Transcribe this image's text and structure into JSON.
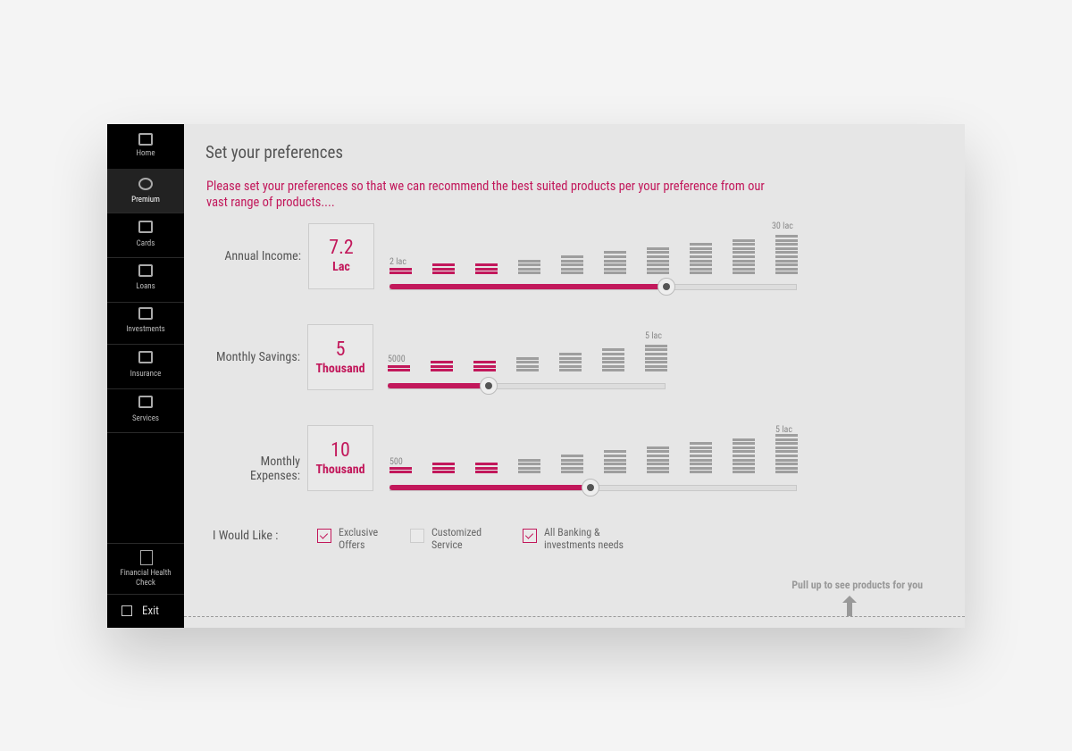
{
  "sidebar": {
    "items": [
      "Home",
      "Premium",
      "Cards",
      "Loans",
      "Investments",
      "Insurance",
      "Services"
    ],
    "active": "Premium",
    "health_check": "Financial Health Check",
    "exit": "Exit"
  },
  "header": {
    "title": "Set your preferences",
    "intro": "Please set your preferences so that we can recommend the best suited products per your preference from our vast range of products...."
  },
  "sliders": [
    {
      "label": "Annual Income:",
      "value": "7.2",
      "unit": "Lac",
      "min_label": "2 lac",
      "max_label": "30 lac"
    },
    {
      "label": "Monthly Savings:",
      "value": "5",
      "unit": "Thousand",
      "min_label": "5000",
      "max_label": "5 lac"
    },
    {
      "label": "Monthly Expenses:",
      "value": "10",
      "unit": "Thousand",
      "min_label": "500",
      "max_label": "5 lac"
    }
  ],
  "preferences": {
    "label": "I Would Like :",
    "options": [
      {
        "label": "Exclusive Offers",
        "checked": true
      },
      {
        "label": "Customized Service",
        "checked": false
      },
      {
        "label": "All Banking & investments needs",
        "checked": true
      }
    ]
  },
  "footer": {
    "hint": "Pull up to see products for you"
  }
}
